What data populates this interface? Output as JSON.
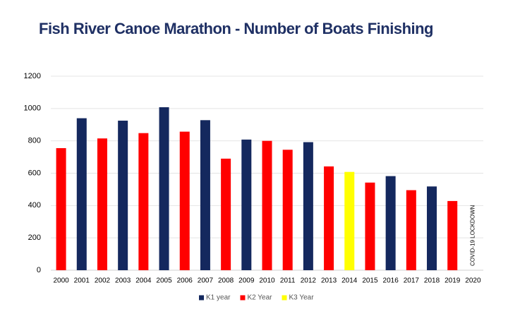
{
  "chart_data": {
    "type": "bar",
    "title": "Fish River Canoe Marathon - Number of Boats Finishing",
    "categories": [
      "2000",
      "2001",
      "2002",
      "2003",
      "2004",
      "2005",
      "2006",
      "2007",
      "2008",
      "2009",
      "2010",
      "2011",
      "2012",
      "2013",
      "2014",
      "2015",
      "2016",
      "2017",
      "2018",
      "2019",
      "2020"
    ],
    "series": [
      {
        "name": "K1 year",
        "color": "#14285e",
        "values": [
          null,
          940,
          null,
          925,
          null,
          1008,
          null,
          928,
          null,
          808,
          null,
          null,
          792,
          null,
          null,
          null,
          582,
          null,
          518,
          null,
          null
        ]
      },
      {
        "name": "K2 Year",
        "color": "#ff0000",
        "values": [
          755,
          null,
          815,
          null,
          848,
          null,
          857,
          null,
          690,
          null,
          800,
          745,
          null,
          642,
          null,
          542,
          null,
          495,
          null,
          428,
          null
        ]
      },
      {
        "name": "K3 Year",
        "color": "#ffff00",
        "values": [
          null,
          null,
          null,
          null,
          null,
          null,
          null,
          null,
          null,
          null,
          null,
          null,
          null,
          null,
          608,
          null,
          null,
          null,
          null,
          null,
          null
        ]
      }
    ],
    "annotation": "COVID-19 LOCKDOWN",
    "ylim": [
      0,
      1200
    ],
    "yticks": [
      0,
      200,
      400,
      600,
      800,
      1000,
      1200
    ],
    "grid": true,
    "legend": "bottom"
  }
}
